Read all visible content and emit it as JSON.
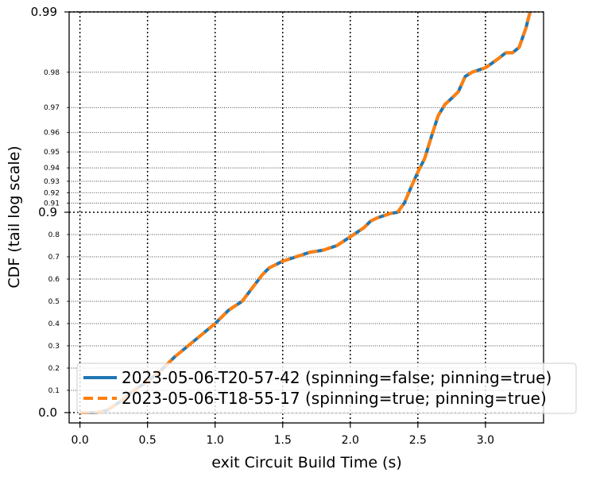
{
  "chart_data": {
    "type": "line",
    "xlabel": "exit Circuit Build Time (s)",
    "ylabel": "CDF (tail log scale)",
    "xlim": [
      -0.08,
      3.43
    ],
    "x_ticks": [
      "0.0",
      "0.5",
      "1.0",
      "1.5",
      "2.0",
      "2.5",
      "3.0"
    ],
    "x_tick_values": [
      0,
      0.5,
      1,
      1.5,
      2,
      2.5,
      3
    ],
    "y_scale": "tail-log",
    "y_major_ticks": [
      {
        "value": 0.0,
        "label": "0.0"
      },
      {
        "value": 0.9,
        "label": "0.9"
      },
      {
        "value": 0.99,
        "label": "0.99"
      }
    ],
    "y_minor_ticks": [
      {
        "value": 0.1,
        "label": "0.1"
      },
      {
        "value": 0.2,
        "label": "0.2"
      },
      {
        "value": 0.3,
        "label": "0.3"
      },
      {
        "value": 0.4,
        "label": "0.4"
      },
      {
        "value": 0.5,
        "label": "0.5"
      },
      {
        "value": 0.6,
        "label": "0.6"
      },
      {
        "value": 0.7,
        "label": "0.7"
      },
      {
        "value": 0.8,
        "label": "0.8"
      },
      {
        "value": 0.91,
        "label": "0.91"
      },
      {
        "value": 0.92,
        "label": "0.92"
      },
      {
        "value": 0.93,
        "label": "0.93"
      },
      {
        "value": 0.94,
        "label": "0.94"
      },
      {
        "value": 0.95,
        "label": "0.95"
      },
      {
        "value": 0.96,
        "label": "0.96"
      },
      {
        "value": 0.97,
        "label": "0.97"
      },
      {
        "value": 0.98,
        "label": "0.98"
      }
    ],
    "grid": true,
    "legend_position": "bottom-right",
    "series": [
      {
        "name": "2023-05-06-T20-57-42 (spinning=false; pinning=true)",
        "color": "#1f77b4",
        "style": "solid",
        "points": [
          [
            0.0,
            0.0
          ],
          [
            0.05,
            0.0
          ],
          [
            0.12,
            0.0
          ],
          [
            0.2,
            0.01
          ],
          [
            0.3,
            0.05
          ],
          [
            0.4,
            0.1
          ],
          [
            0.5,
            0.14
          ],
          [
            0.6,
            0.19
          ],
          [
            0.7,
            0.25
          ],
          [
            0.8,
            0.3
          ],
          [
            0.9,
            0.35
          ],
          [
            1.0,
            0.4
          ],
          [
            1.05,
            0.43
          ],
          [
            1.1,
            0.46
          ],
          [
            1.15,
            0.48
          ],
          [
            1.2,
            0.5
          ],
          [
            1.25,
            0.54
          ],
          [
            1.3,
            0.58
          ],
          [
            1.35,
            0.62
          ],
          [
            1.4,
            0.65
          ],
          [
            1.5,
            0.68
          ],
          [
            1.6,
            0.7
          ],
          [
            1.7,
            0.72
          ],
          [
            1.8,
            0.73
          ],
          [
            1.9,
            0.75
          ],
          [
            1.95,
            0.77
          ],
          [
            2.0,
            0.79
          ],
          [
            2.05,
            0.81
          ],
          [
            2.1,
            0.83
          ],
          [
            2.15,
            0.86
          ],
          [
            2.2,
            0.875
          ],
          [
            2.25,
            0.885
          ],
          [
            2.3,
            0.895
          ],
          [
            2.35,
            0.9
          ],
          [
            2.4,
            0.91
          ],
          [
            2.45,
            0.925
          ],
          [
            2.5,
            0.937
          ],
          [
            2.55,
            0.946
          ],
          [
            2.6,
            0.958
          ],
          [
            2.65,
            0.967
          ],
          [
            2.7,
            0.971
          ],
          [
            2.75,
            0.973
          ],
          [
            2.8,
            0.975
          ],
          [
            2.85,
            0.979
          ],
          [
            2.9,
            0.98
          ],
          [
            3.0,
            0.981
          ],
          [
            3.05,
            0.982
          ],
          [
            3.1,
            0.983
          ],
          [
            3.15,
            0.984
          ],
          [
            3.2,
            0.984
          ],
          [
            3.25,
            0.985
          ],
          [
            3.3,
            0.988
          ],
          [
            3.33,
            0.99
          ]
        ]
      },
      {
        "name": "2023-05-06-T18-55-17 (spinning=true; pinning=true)",
        "color": "#ff7f0e",
        "style": "dashed",
        "points": [
          [
            0.0,
            0.0
          ],
          [
            0.05,
            0.0
          ],
          [
            0.12,
            0.0
          ],
          [
            0.2,
            0.01
          ],
          [
            0.3,
            0.05
          ],
          [
            0.4,
            0.1
          ],
          [
            0.5,
            0.14
          ],
          [
            0.6,
            0.19
          ],
          [
            0.7,
            0.25
          ],
          [
            0.8,
            0.3
          ],
          [
            0.9,
            0.35
          ],
          [
            1.0,
            0.4
          ],
          [
            1.05,
            0.43
          ],
          [
            1.1,
            0.46
          ],
          [
            1.15,
            0.48
          ],
          [
            1.2,
            0.5
          ],
          [
            1.25,
            0.54
          ],
          [
            1.3,
            0.58
          ],
          [
            1.35,
            0.62
          ],
          [
            1.4,
            0.65
          ],
          [
            1.5,
            0.68
          ],
          [
            1.6,
            0.7
          ],
          [
            1.7,
            0.72
          ],
          [
            1.8,
            0.73
          ],
          [
            1.9,
            0.75
          ],
          [
            1.95,
            0.77
          ],
          [
            2.0,
            0.79
          ],
          [
            2.05,
            0.81
          ],
          [
            2.1,
            0.83
          ],
          [
            2.15,
            0.86
          ],
          [
            2.2,
            0.875
          ],
          [
            2.25,
            0.885
          ],
          [
            2.3,
            0.895
          ],
          [
            2.35,
            0.9
          ],
          [
            2.4,
            0.91
          ],
          [
            2.45,
            0.925
          ],
          [
            2.5,
            0.937
          ],
          [
            2.55,
            0.946
          ],
          [
            2.6,
            0.958
          ],
          [
            2.65,
            0.967
          ],
          [
            2.7,
            0.971
          ],
          [
            2.75,
            0.973
          ],
          [
            2.8,
            0.975
          ],
          [
            2.85,
            0.979
          ],
          [
            2.9,
            0.98
          ],
          [
            3.0,
            0.981
          ],
          [
            3.05,
            0.982
          ],
          [
            3.1,
            0.983
          ],
          [
            3.15,
            0.984
          ],
          [
            3.2,
            0.984
          ],
          [
            3.25,
            0.985
          ],
          [
            3.3,
            0.988
          ],
          [
            3.33,
            0.99
          ]
        ]
      }
    ]
  }
}
